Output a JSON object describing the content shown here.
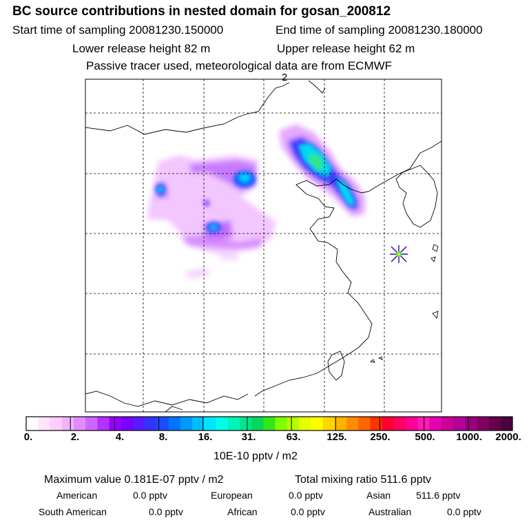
{
  "header": {
    "title": "BC  source contributions in nested domain for gosan_200812",
    "start_label": "Start time of sampling 20081230.150000",
    "end_label": "End time of sampling 20081230.180000",
    "lower_label": "Lower release height   82 m",
    "upper_label": "Upper release height   62 m",
    "tracer_note": "Passive tracer used, meteorological data are from ECMWF"
  },
  "map": {
    "corner_label": "2",
    "receptor_marker": "asterisk-marker"
  },
  "colorbar": {
    "colors": [
      "#ffffff",
      "#ffe6ff",
      "#ffccff",
      "#f2b3ff",
      "#e08cff",
      "#cc66ff",
      "#b233ff",
      "#9900ff",
      "#7a00ff",
      "#5a1aff",
      "#3333ff",
      "#1a4dff",
      "#0073ff",
      "#0099ff",
      "#00bfff",
      "#00e5ff",
      "#00ffe6",
      "#00f5b8",
      "#00e68a",
      "#00d95c",
      "#33e61a",
      "#80ff00",
      "#b3ff00",
      "#e6ff00",
      "#ffff00",
      "#ffd700",
      "#ffb300",
      "#ff8c00",
      "#ff6600",
      "#ff3300",
      "#ff0033",
      "#ff0066",
      "#ff0099",
      "#ff1ab3",
      "#e600b3",
      "#cc0099",
      "#b30099",
      "#990080",
      "#800066",
      "#66004d",
      "#4d0040"
    ],
    "tick_labels": [
      "0.",
      "2.",
      "4.",
      "8.",
      "16.",
      "31.",
      "63.",
      "125.",
      "250.",
      "500.",
      "1000.",
      "2000."
    ],
    "unit_label": "10E-10 pptv / m2"
  },
  "stats": {
    "max_value": "Maximum value  0.181E-07 pptv / m2",
    "total_mixing": "Total mixing ratio      511.6 pptv",
    "american_label": "American",
    "american_value": "0.0 pptv",
    "european_label": "European",
    "european_value": "0.0 pptv",
    "asian_label": "Asian",
    "asian_value": "511.6 pptv",
    "south_american_label": "South American",
    "south_american_value": "0.0 pptv",
    "african_label": "African",
    "african_value": "0.0 pptv",
    "australian_label": "Australian",
    "australian_value": "0.0 pptv"
  }
}
